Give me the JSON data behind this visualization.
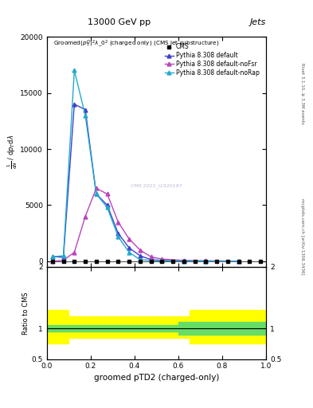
{
  "title_top": "13000 GeV pp",
  "title_right": "Jets",
  "xlabel": "groomed pTD2 (charged-only)",
  "ylabel_ratio": "Ratio to CMS",
  "right_label_top": "Rivet 3.1.10, ≥ 3.3M events",
  "right_label_bottom": "mcplots.cern.ch [arXiv:1306.3436]",
  "cms_x": [
    0.025,
    0.075,
    0.125,
    0.175,
    0.225,
    0.275,
    0.325,
    0.375,
    0.425,
    0.475,
    0.525,
    0.575,
    0.625,
    0.675,
    0.725,
    0.775,
    0.825,
    0.875,
    0.925,
    0.975
  ],
  "cms_y": [
    2,
    2,
    2,
    2,
    2,
    2,
    2,
    2,
    2,
    2,
    2,
    2,
    2,
    2,
    2,
    2,
    2,
    2,
    2,
    2
  ],
  "pythia_default_x": [
    0.025,
    0.075,
    0.125,
    0.175,
    0.225,
    0.275,
    0.325,
    0.375,
    0.425,
    0.475,
    0.525,
    0.625,
    0.725,
    0.875
  ],
  "pythia_default_y": [
    450,
    350,
    14000,
    13500,
    6000,
    5000,
    2500,
    1200,
    500,
    150,
    80,
    40,
    30,
    20
  ],
  "pythia_noFsr_x": [
    0.025,
    0.075,
    0.125,
    0.175,
    0.225,
    0.275,
    0.325,
    0.375,
    0.425,
    0.475,
    0.525,
    0.625,
    0.725,
    0.875
  ],
  "pythia_noFsr_y": [
    2,
    100,
    800,
    4000,
    6500,
    6000,
    3500,
    2000,
    1000,
    400,
    200,
    80,
    40,
    15
  ],
  "pythia_noRap_x": [
    0.025,
    0.075,
    0.125,
    0.175,
    0.225,
    0.275,
    0.325,
    0.375,
    0.425,
    0.475,
    0.525,
    0.625,
    0.725,
    0.875
  ],
  "pythia_noRap_y": [
    400,
    500,
    17000,
    13000,
    6000,
    4800,
    2200,
    800,
    150,
    80,
    40,
    25,
    15,
    10
  ],
  "color_default": "#4040cc",
  "color_noFsr": "#bb44bb",
  "color_noRap": "#22aacc",
  "color_cms": "#000000",
  "ylim_main": [
    -500,
    20000
  ],
  "ylim_ratio": [
    0.5,
    2.0
  ],
  "xlim": [
    0,
    1.0
  ],
  "yticks_main": [
    0,
    5000,
    10000,
    15000,
    20000
  ],
  "ytick_labels_main": [
    "0",
    "5000",
    "10000",
    "15000",
    "20000"
  ],
  "watermark": "CMS 2021_I1920187"
}
